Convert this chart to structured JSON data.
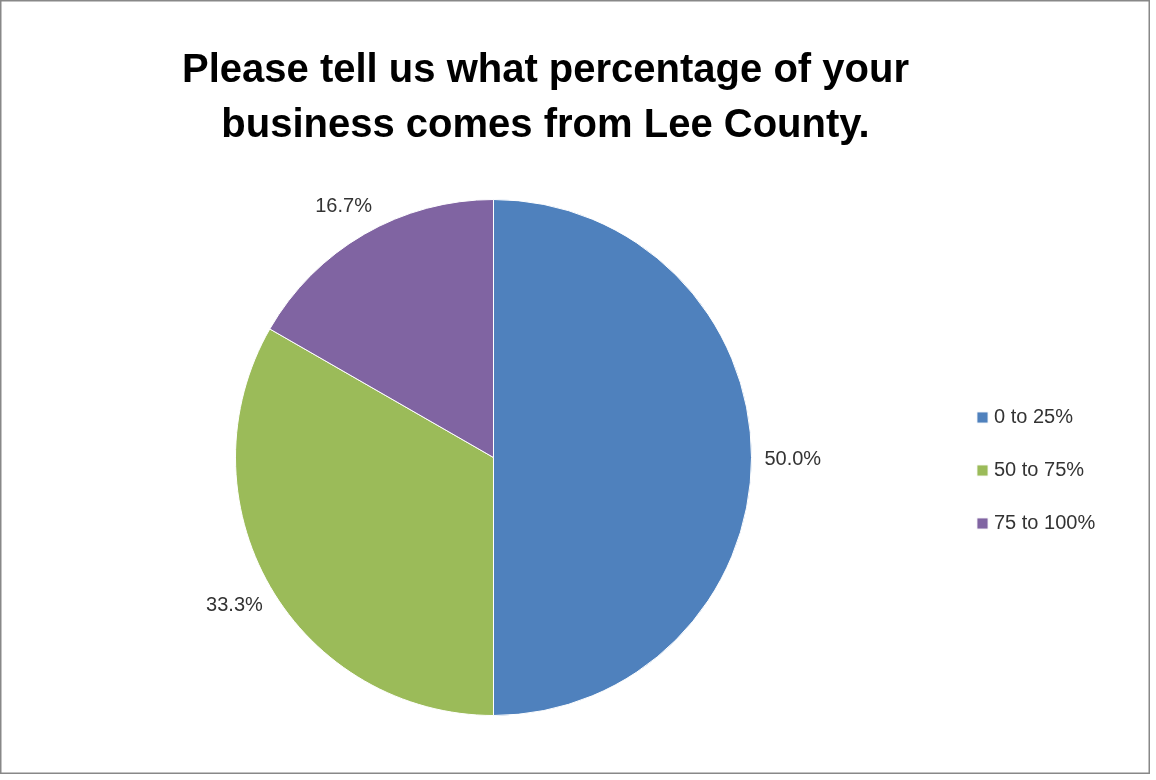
{
  "chart_data": {
    "type": "pie",
    "title": "Please tell us what percentage of your business comes from Lee County.",
    "categories": [
      "0 to 25%",
      "50 to 75%",
      "75 to 100%"
    ],
    "values": [
      50.0,
      33.3,
      16.7
    ],
    "colors": [
      "#4f81bd",
      "#9bbb59",
      "#8064a2"
    ],
    "value_labels": [
      "50.0%",
      "33.3%",
      "16.7%"
    ],
    "legend": "right"
  }
}
